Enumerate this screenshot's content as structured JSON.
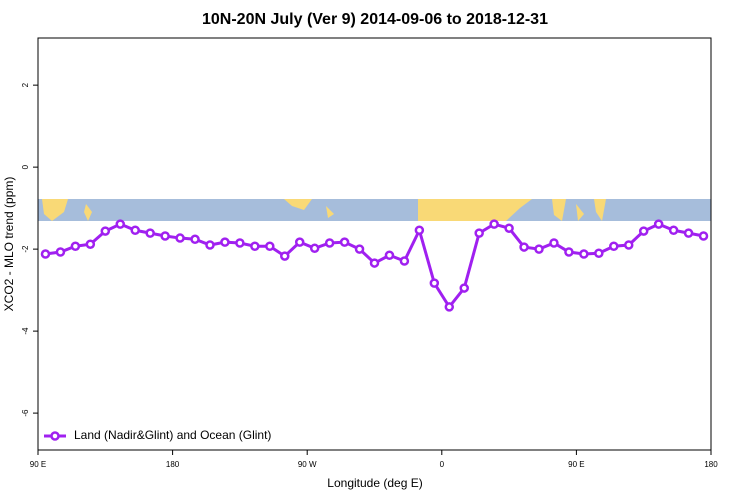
{
  "chart_data": {
    "type": "line",
    "title": "10N-20N July (Ver 9)   2014-09-06 to 2018-12-31",
    "x_label": "Longitude (deg E)",
    "y_label": "XCO2 - MLO trend (ppm)",
    "x": [
      95,
      105,
      115,
      125,
      135,
      145,
      155,
      165,
      175,
      185,
      195,
      205,
      215,
      225,
      235,
      245,
      255,
      265,
      275,
      285,
      295,
      305,
      315,
      325,
      335,
      345,
      355,
      365,
      375,
      385,
      395,
      405,
      415,
      425,
      435,
      445,
      455,
      465,
      475,
      485,
      495,
      505,
      515,
      525,
      535
    ],
    "series": [
      {
        "name": "Land (Nadir&Glint) and Ocean (Glint)",
        "color": "#a020f0",
        "values": [
          -2.12,
          -2.07,
          -1.93,
          -1.88,
          -1.56,
          -1.39,
          -1.54,
          -1.61,
          -1.68,
          -1.73,
          -1.76,
          -1.9,
          -1.83,
          -1.85,
          -1.93,
          -1.93,
          -2.17,
          -1.83,
          -1.98,
          -1.85,
          -1.83,
          -2.0,
          -2.34,
          -2.15,
          -2.29,
          -1.54,
          -2.83,
          -3.41,
          -2.95,
          -1.61,
          -1.39,
          -1.49,
          -1.95,
          -2.0,
          -1.85,
          -2.07,
          -2.12,
          -2.1,
          -1.93,
          -1.9,
          -1.56,
          -1.39,
          -1.54,
          -1.61,
          -1.68
        ]
      }
    ],
    "xlim": [
      90,
      540
    ],
    "xticks": [
      {
        "value": 90,
        "label": "90 E"
      },
      180,
      {
        "value": 270,
        "label": "90 W"
      },
      {
        "value": 360,
        "label": "0"
      },
      {
        "value": 450,
        "label": "90 E"
      },
      {
        "value": 540,
        "label": "180"
      }
    ],
    "ylim": [
      -6.9,
      3.15
    ],
    "yticks": [
      -6,
      -4,
      -2,
      0,
      2
    ],
    "legend": "bottom-left"
  }
}
